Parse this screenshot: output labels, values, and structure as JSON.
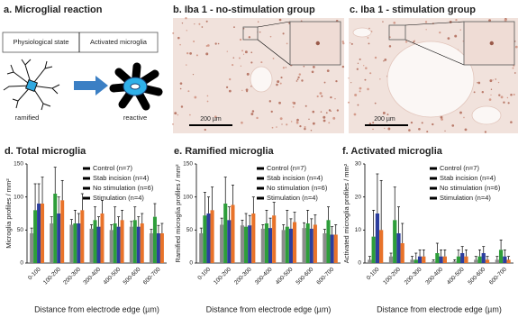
{
  "panel_a": {
    "label": "a.",
    "title": "Microglial reaction",
    "states": [
      "Physiological state",
      "Activated microglia"
    ],
    "cells": [
      "ramified",
      "reactive"
    ]
  },
  "panel_b": {
    "label": "b.",
    "title": "Iba 1 - no-stimulation group",
    "scale": "200 µm"
  },
  "panel_c": {
    "label": "c.",
    "title": "Iba 1 - stimulation group",
    "scale": "200 µm"
  },
  "chart_data": [
    {
      "type": "bar",
      "label": "d.",
      "title": "Total microglia",
      "xlabel": "Distance from electrode edge (µm)",
      "ylabel": "Microglia profiles / mm²",
      "categories": [
        "0-100",
        "100-200",
        "200-300",
        "300-400",
        "400-500",
        "500-600",
        "600-700"
      ],
      "series": [
        {
          "name": "Control (n=7)",
          "color": "#8c8c8c",
          "values": [
            45,
            60,
            58,
            52,
            50,
            55,
            45
          ],
          "errors": [
            8,
            10,
            8,
            6,
            8,
            8,
            6
          ]
        },
        {
          "name": "Stab incision (n=4)",
          "color": "#2e9e3a",
          "values": [
            80,
            105,
            60,
            65,
            60,
            65,
            70
          ],
          "errors": [
            40,
            40,
            20,
            20,
            25,
            20,
            20
          ]
        },
        {
          "name": "No stimulation (n=6)",
          "color": "#2c3e9e",
          "values": [
            90,
            75,
            60,
            55,
            55,
            55,
            45
          ],
          "errors": [
            30,
            25,
            15,
            15,
            15,
            15,
            12
          ]
        },
        {
          "name": "Stimulation (n=4)",
          "color": "#e8732a",
          "values": [
            90,
            95,
            80,
            75,
            65,
            60,
            45
          ],
          "errors": [
            40,
            30,
            25,
            20,
            15,
            15,
            15
          ]
        }
      ],
      "ylim": [
        0,
        150
      ],
      "yticks": [
        0,
        50,
        100,
        150
      ],
      "legend": "upper right"
    },
    {
      "type": "bar",
      "label": "e.",
      "title": "Ramified microglia",
      "xlabel": "Distance from electrode edge (µm)",
      "ylabel": "Ramified microglia profiles / mm²",
      "categories": [
        "0-100",
        "100-200",
        "200-300",
        "300-400",
        "400-500",
        "500-600",
        "600-700"
      ],
      "series": [
        {
          "name": "Control (n=7)",
          "color": "#8c8c8c",
          "values": [
            45,
            58,
            57,
            52,
            50,
            53,
            45
          ],
          "errors": [
            8,
            10,
            8,
            6,
            8,
            8,
            6
          ]
        },
        {
          "name": "Stab incision (n=4)",
          "color": "#2e9e3a",
          "values": [
            72,
            90,
            55,
            60,
            55,
            60,
            65
          ],
          "errors": [
            35,
            40,
            20,
            20,
            25,
            20,
            20
          ]
        },
        {
          "name": "No stimulation (n=6)",
          "color": "#2c3e9e",
          "values": [
            75,
            65,
            57,
            53,
            52,
            52,
            43
          ],
          "errors": [
            25,
            20,
            15,
            15,
            15,
            15,
            12
          ]
        },
        {
          "name": "Stimulation (n=4)",
          "color": "#e8732a",
          "values": [
            80,
            88,
            75,
            72,
            62,
            58,
            43
          ],
          "errors": [
            35,
            30,
            25,
            20,
            15,
            15,
            15
          ]
        }
      ],
      "ylim": [
        0,
        150
      ],
      "yticks": [
        0,
        50,
        100,
        150
      ],
      "legend": "upper right"
    },
    {
      "type": "bar",
      "label": "f.",
      "title": "Activated microglia",
      "xlabel": "Distance from electrode edge (µm)",
      "ylabel": "Activated microglia profiles / mm²",
      "categories": [
        "0-100",
        "100-200",
        "200-300",
        "300-400",
        "400-500",
        "500-600",
        "600-700"
      ],
      "series": [
        {
          "name": "Control (n=7)",
          "color": "#8c8c8c",
          "values": [
            1,
            2,
            1,
            0.5,
            0.5,
            1,
            1
          ],
          "errors": [
            1,
            1,
            1,
            0.5,
            0.5,
            1,
            1
          ]
        },
        {
          "name": "Stab incision (n=4)",
          "color": "#2e9e3a",
          "values": [
            8,
            13,
            1,
            3,
            2,
            2,
            4
          ],
          "errors": [
            8,
            10,
            2,
            3,
            2,
            2,
            3
          ]
        },
        {
          "name": "No stimulation (n=6)",
          "color": "#2c3e9e",
          "values": [
            15,
            9,
            2,
            2,
            3,
            3,
            2
          ],
          "errors": [
            12,
            8,
            2,
            2,
            2,
            2,
            2
          ]
        },
        {
          "name": "Stimulation (n=4)",
          "color": "#e8732a",
          "values": [
            10,
            6,
            2,
            2,
            2,
            1,
            1
          ],
          "errors": [
            15,
            6,
            2,
            2,
            2,
            1,
            1
          ]
        }
      ],
      "ylim": [
        0,
        30
      ],
      "yticks": [
        0,
        10,
        20,
        30
      ],
      "legend": "upper right"
    }
  ]
}
